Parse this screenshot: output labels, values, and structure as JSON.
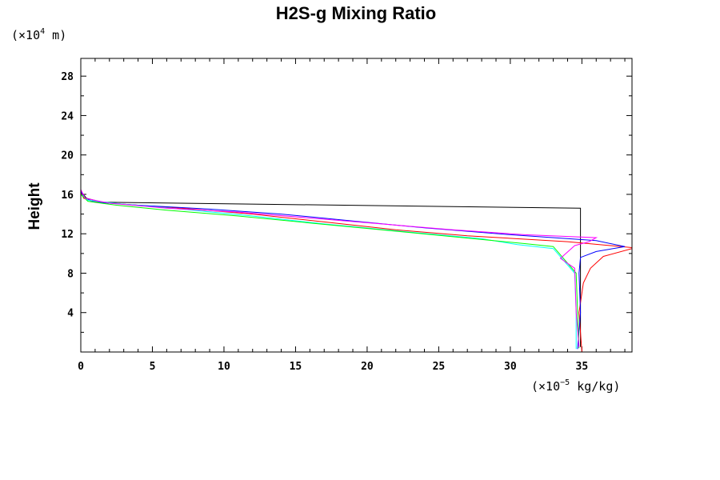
{
  "chart_data": {
    "type": "line",
    "title": "H2S-g Mixing Ratio",
    "ylabel": "Height",
    "y_unit": {
      "prefix": "(×10",
      "exp": "4",
      "suffix": " m)"
    },
    "x_unit": {
      "prefix": "(×10",
      "exp": "−5",
      "suffix": " kg/kg)"
    },
    "xlim": [
      0,
      38.5
    ],
    "ylim": [
      0,
      29.8
    ],
    "x_ticks": [
      0,
      5,
      10,
      15,
      20,
      25,
      30,
      35
    ],
    "y_ticks": [
      4,
      8,
      12,
      16,
      20,
      24,
      28
    ],
    "series": [
      {
        "color": "#000000",
        "points": [
          [
            34.9,
            0.5
          ],
          [
            34.9,
            14.6
          ],
          [
            1.5,
            15.2
          ],
          [
            0.4,
            15.6
          ],
          [
            0,
            16.3
          ]
        ]
      },
      {
        "color": "#ff0000",
        "points": [
          [
            35.0,
            0.0
          ],
          [
            34.8,
            4.0
          ],
          [
            35.1,
            7.0
          ],
          [
            35.6,
            8.5
          ],
          [
            36.5,
            9.7
          ],
          [
            38.5,
            10.5
          ],
          [
            38.5,
            10.6
          ],
          [
            34.0,
            11.2
          ],
          [
            27.0,
            11.8
          ],
          [
            22.0,
            12.4
          ],
          [
            17.0,
            13.2
          ],
          [
            12.0,
            14.0
          ],
          [
            7.0,
            14.6
          ],
          [
            3.0,
            15.0
          ],
          [
            0.8,
            15.3
          ],
          [
            0.2,
            15.6
          ],
          [
            0,
            16.2
          ]
        ]
      },
      {
        "color": "#0000ff",
        "points": [
          [
            34.7,
            0.3
          ],
          [
            34.9,
            4.0
          ],
          [
            34.8,
            8.0
          ],
          [
            34.9,
            9.6
          ],
          [
            36.0,
            10.2
          ],
          [
            38.0,
            10.7
          ],
          [
            36.0,
            11.3
          ],
          [
            30.0,
            11.9
          ],
          [
            24.0,
            12.6
          ],
          [
            19.0,
            13.3
          ],
          [
            14.0,
            14.0
          ],
          [
            9.0,
            14.5
          ],
          [
            4.0,
            14.9
          ],
          [
            1.0,
            15.2
          ],
          [
            0.3,
            15.6
          ],
          [
            0,
            16.3
          ]
        ]
      },
      {
        "color": "#00ffff",
        "points": [
          [
            34.6,
            0.3
          ],
          [
            34.6,
            4.0
          ],
          [
            34.5,
            8.0
          ],
          [
            33.0,
            10.5
          ],
          [
            30.5,
            10.9
          ],
          [
            28.0,
            11.5
          ],
          [
            22.0,
            12.3
          ],
          [
            17.0,
            13.0
          ],
          [
            12.0,
            13.8
          ],
          [
            7.0,
            14.5
          ],
          [
            3.0,
            15.0
          ],
          [
            0.5,
            15.4
          ],
          [
            0,
            16.0
          ]
        ]
      },
      {
        "color": "#00ff00",
        "points": [
          [
            34.8,
            0.4
          ],
          [
            34.7,
            4.0
          ],
          [
            34.6,
            8.0
          ],
          [
            33.0,
            10.7
          ],
          [
            31.0,
            11.0
          ],
          [
            26.0,
            11.7
          ],
          [
            21.0,
            12.4
          ],
          [
            16.0,
            13.1
          ],
          [
            11.0,
            13.8
          ],
          [
            6.0,
            14.4
          ],
          [
            2.5,
            14.9
          ],
          [
            0.5,
            15.3
          ],
          [
            0,
            16.0
          ]
        ]
      },
      {
        "color": "#ff00ff",
        "points": [
          [
            0,
            29.8
          ],
          [
            0,
            16.5
          ],
          [
            0.3,
            15.6
          ],
          [
            2.0,
            15.1
          ],
          [
            6.0,
            14.6
          ],
          [
            11.0,
            14.2
          ],
          [
            16.0,
            13.6
          ],
          [
            21.0,
            13.0
          ],
          [
            26.0,
            12.4
          ],
          [
            31.0,
            11.9
          ],
          [
            36.0,
            11.6
          ],
          [
            35.5,
            11.2
          ],
          [
            34.5,
            10.8
          ],
          [
            33.5,
            9.5
          ],
          [
            34.0,
            9.0
          ],
          [
            34.5,
            8.5
          ],
          [
            34.6,
            4.0
          ],
          [
            34.8,
            0.5
          ]
        ]
      }
    ]
  }
}
